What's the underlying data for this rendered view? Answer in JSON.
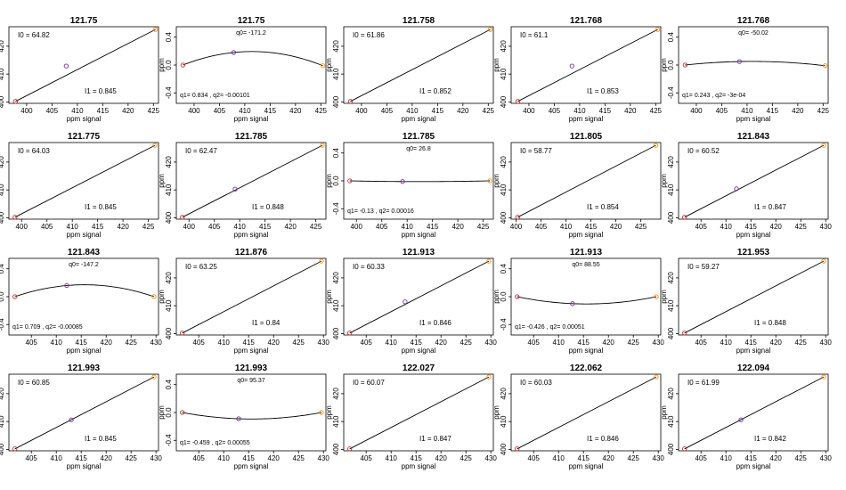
{
  "chart_data": [
    {
      "type": "line",
      "title": "121.75",
      "xlabel": "ppm signal",
      "ylabel": "ppm",
      "xlim": [
        396.5,
        426
      ],
      "ylim": [
        399.5,
        427
      ],
      "xticks": [
        "400",
        "405",
        "410",
        "415",
        "420",
        "425"
      ],
      "yticks": [
        "400",
        "410",
        "420"
      ],
      "points": [
        [
          397.8,
          400.2
        ],
        [
          407.8,
          412.9
        ],
        [
          425.4,
          426.0
        ]
      ],
      "fit": "linear",
      "annotations": [
        "I0 = 64.82",
        "I1 = 0.845"
      ]
    },
    {
      "type": "line",
      "title": "121.75",
      "xlabel": "ppm signal",
      "ylabel": "",
      "xlim": [
        396.5,
        426
      ],
      "ylim": [
        -0.55,
        0.55
      ],
      "xticks": [
        "400",
        "405",
        "410",
        "415",
        "420",
        "425"
      ],
      "yticks": [
        "-0.4",
        "0.0",
        "0.4"
      ],
      "points": [
        [
          397.8,
          0.0
        ],
        [
          407.8,
          0.18
        ],
        [
          425.4,
          -0.01
        ]
      ],
      "fit": "quadratic",
      "annotations": [
        "q0= -171.2",
        "q1= 0.834 , q2= -0.00101"
      ]
    },
    {
      "type": "line",
      "title": "121.758",
      "xlabel": "ppm signal",
      "ylabel": "",
      "xlim": [
        396.5,
        426
      ],
      "ylim": [
        399.5,
        427
      ],
      "xticks": [
        "400",
        "405",
        "410",
        "415",
        "420",
        "425"
      ],
      "yticks": [
        "400",
        "410",
        "420"
      ],
      "points": [
        [
          397.8,
          400.2
        ],
        [
          425.4,
          426.0
        ]
      ],
      "fit": "linear",
      "annotations": [
        "I0 = 61.86",
        "I1 = 0.852"
      ]
    },
    {
      "type": "line",
      "title": "121.768",
      "xlabel": "ppm signal",
      "ylabel": "",
      "xlim": [
        396.5,
        426
      ],
      "ylim": [
        399.5,
        427
      ],
      "xticks": [
        "400",
        "405",
        "410",
        "415",
        "420",
        "425"
      ],
      "yticks": [
        "400",
        "410",
        "420"
      ],
      "points": [
        [
          397.8,
          400.2
        ],
        [
          408.5,
          412.9
        ],
        [
          425.4,
          426.0
        ]
      ],
      "fit": "linear",
      "annotations": [
        "I0 = 61.1",
        "I1 = 0.853"
      ]
    },
    {
      "type": "line",
      "title": "121.768",
      "xlabel": "ppm signal",
      "ylabel": "",
      "xlim": [
        396.5,
        426
      ],
      "ylim": [
        -0.55,
        0.55
      ],
      "xticks": [
        "400",
        "405",
        "410",
        "415",
        "420",
        "425"
      ],
      "yticks": [
        "-0.4",
        "0.0",
        "0.4"
      ],
      "points": [
        [
          397.8,
          0.0
        ],
        [
          408.5,
          0.05
        ],
        [
          425.4,
          -0.01
        ]
      ],
      "fit": "quadratic",
      "annotations": [
        "q0= -50.02",
        "q1= 0.243 , q2= -3e-04"
      ]
    },
    {
      "type": "line",
      "title": "121.775",
      "xlabel": "ppm signal",
      "ylabel": "",
      "xlim": [
        397.5,
        427
      ],
      "ylim": [
        399.5,
        427
      ],
      "xticks": [
        "400",
        "405",
        "410",
        "415",
        "420",
        "425"
      ],
      "yticks": [
        "400",
        "410",
        "420"
      ],
      "points": [
        [
          398.7,
          400.2
        ],
        [
          426.3,
          426.0
        ]
      ],
      "fit": "linear",
      "annotations": [
        "I0 = 64.03",
        "I1 = 0.845"
      ]
    },
    {
      "type": "line",
      "title": "121.785",
      "xlabel": "ppm signal",
      "ylabel": "",
      "xlim": [
        397.5,
        427
      ],
      "ylim": [
        399.5,
        427
      ],
      "xticks": [
        "400",
        "405",
        "410",
        "415",
        "420",
        "425"
      ],
      "yticks": [
        "400",
        "410",
        "420"
      ],
      "points": [
        [
          398.7,
          400.2
        ],
        [
          409.1,
          410.3
        ],
        [
          426.3,
          426.0
        ]
      ],
      "fit": "linear",
      "annotations": [
        "I0 = 62.47",
        "I1 = 0.848"
      ]
    },
    {
      "type": "line",
      "title": "121.785",
      "xlabel": "ppm signal",
      "ylabel": "",
      "xlim": [
        397.5,
        427
      ],
      "ylim": [
        -0.55,
        0.55
      ],
      "xticks": [
        "400",
        "405",
        "410",
        "415",
        "420",
        "425"
      ],
      "yticks": [
        "-0.4",
        "0.0",
        "0.4"
      ],
      "points": [
        [
          398.7,
          0.0
        ],
        [
          409.1,
          -0.01
        ],
        [
          426.3,
          0.0
        ]
      ],
      "fit": "quadratic",
      "annotations": [
        "q0= 26.8",
        "q1= -0.13 , q2= 0.00016"
      ]
    },
    {
      "type": "line",
      "title": "121.805",
      "xlabel": "ppm signal",
      "ylabel": "",
      "xlim": [
        399,
        429
      ],
      "ylim": [
        399.5,
        427
      ],
      "xticks": [
        "400",
        "405",
        "410",
        "415",
        "420",
        "425"
      ],
      "yticks": [
        "400",
        "410",
        "420"
      ],
      "points": [
        [
          400.3,
          400.2
        ],
        [
          428.0,
          426.0
        ]
      ],
      "fit": "linear",
      "annotations": [
        "I0 = 58.77",
        "I1 = 0.854"
      ]
    },
    {
      "type": "line",
      "title": "121.843",
      "xlabel": "ppm signal",
      "ylabel": "",
      "xlim": [
        400.5,
        430.5
      ],
      "ylim": [
        399.5,
        427
      ],
      "xticks": [
        "405",
        "410",
        "415",
        "420",
        "425",
        "430"
      ],
      "yticks": [
        "400",
        "410",
        "420"
      ],
      "points": [
        [
          401.7,
          400.2
        ],
        [
          412.1,
          410.4
        ],
        [
          429.6,
          426.0
        ]
      ],
      "fit": "linear",
      "annotations": [
        "I0 = 60.52",
        "I1 = 0.847"
      ]
    },
    {
      "type": "line",
      "title": "121.843",
      "xlabel": "ppm signal",
      "ylabel": "",
      "xlim": [
        400.5,
        430.5
      ],
      "ylim": [
        -0.55,
        0.55
      ],
      "xticks": [
        "405",
        "410",
        "415",
        "420",
        "425",
        "430"
      ],
      "yticks": [
        "-0.4",
        "0.0",
        "0.4"
      ],
      "points": [
        [
          401.7,
          0.0
        ],
        [
          412.1,
          0.16
        ],
        [
          429.6,
          0.0
        ]
      ],
      "fit": "quadratic",
      "annotations": [
        "q0= -147.2",
        "q1= 0.709 , q2= -0.00085"
      ]
    },
    {
      "type": "line",
      "title": "121.876",
      "xlabel": "ppm signal",
      "ylabel": "",
      "xlim": [
        400.5,
        430.5
      ],
      "ylim": [
        399.5,
        427
      ],
      "xticks": [
        "405",
        "410",
        "415",
        "420",
        "425",
        "430"
      ],
      "yticks": [
        "400",
        "410",
        "420"
      ],
      "points": [
        [
          401.7,
          400.2
        ],
        [
          429.6,
          426.0
        ]
      ],
      "fit": "linear",
      "annotations": [
        "I0 = 63.25",
        "I1 = 0.84"
      ]
    },
    {
      "type": "line",
      "title": "121.913",
      "xlabel": "ppm signal",
      "ylabel": "",
      "xlim": [
        400.5,
        430.5
      ],
      "ylim": [
        399.5,
        427
      ],
      "xticks": [
        "405",
        "410",
        "415",
        "420",
        "425",
        "430"
      ],
      "yticks": [
        "400",
        "410",
        "420"
      ],
      "points": [
        [
          401.7,
          400.2
        ],
        [
          412.8,
          411.4
        ],
        [
          429.6,
          426.0
        ]
      ],
      "fit": "linear",
      "annotations": [
        "I0 = 60.33",
        "I1 = 0.846"
      ]
    },
    {
      "type": "line",
      "title": "121.913",
      "xlabel": "ppm signal",
      "ylabel": "",
      "xlim": [
        400.5,
        430.5
      ],
      "ylim": [
        -0.55,
        0.55
      ],
      "xticks": [
        "405",
        "410",
        "415",
        "420",
        "425",
        "430"
      ],
      "yticks": [
        "-0.4",
        "0.0",
        "0.4"
      ],
      "points": [
        [
          401.7,
          0.0
        ],
        [
          412.8,
          -0.1
        ],
        [
          429.6,
          0.0
        ]
      ],
      "fit": "quadratic",
      "annotations": [
        "q0= 88.55",
        "q1= -0.426 , q2= 0.00051"
      ]
    },
    {
      "type": "line",
      "title": "121.953",
      "xlabel": "ppm signal",
      "ylabel": "",
      "xlim": [
        400.5,
        430.5
      ],
      "ylim": [
        399.5,
        427
      ],
      "xticks": [
        "405",
        "410",
        "415",
        "420",
        "425",
        "430"
      ],
      "yticks": [
        "400",
        "410",
        "420"
      ],
      "points": [
        [
          401.7,
          400.2
        ],
        [
          429.6,
          426.0
        ]
      ],
      "fit": "linear",
      "annotations": [
        "I0 = 59.27",
        "I1 = 0.848"
      ]
    },
    {
      "type": "line",
      "title": "121.993",
      "xlabel": "ppm signal",
      "ylabel": "",
      "xlim": [
        400.5,
        430.5
      ],
      "ylim": [
        399.5,
        427
      ],
      "xticks": [
        "405",
        "410",
        "415",
        "420",
        "425",
        "430"
      ],
      "yticks": [
        "400",
        "410",
        "420"
      ],
      "points": [
        [
          401.7,
          400.2
        ],
        [
          413.0,
          410.6
        ],
        [
          429.6,
          426.0
        ]
      ],
      "fit": "linear",
      "annotations": [
        "I0 = 60.85",
        "I1 = 0.845"
      ]
    },
    {
      "type": "line",
      "title": "121.993",
      "xlabel": "ppm signal",
      "ylabel": "",
      "xlim": [
        400.5,
        430.5
      ],
      "ylim": [
        -0.55,
        0.55
      ],
      "xticks": [
        "405",
        "410",
        "415",
        "420",
        "425",
        "430"
      ],
      "yticks": [
        "-0.4",
        "0.0",
        "0.4"
      ],
      "points": [
        [
          401.7,
          0.0
        ],
        [
          413.0,
          -0.09
        ],
        [
          429.6,
          0.0
        ]
      ],
      "fit": "quadratic",
      "annotations": [
        "q0= 95.37",
        "q1= -0.459 , q2= 0.00055"
      ]
    },
    {
      "type": "line",
      "title": "122.027",
      "xlabel": "ppm signal",
      "ylabel": "",
      "xlim": [
        400.5,
        430.5
      ],
      "ylim": [
        399.5,
        427
      ],
      "xticks": [
        "405",
        "410",
        "415",
        "420",
        "425",
        "430"
      ],
      "yticks": [
        "400",
        "410",
        "420"
      ],
      "points": [
        [
          401.7,
          400.2
        ],
        [
          429.6,
          426.0
        ]
      ],
      "fit": "linear",
      "annotations": [
        "I0 = 60.07",
        "I1 = 0.847"
      ]
    },
    {
      "type": "line",
      "title": "122.062",
      "xlabel": "ppm signal",
      "ylabel": "",
      "xlim": [
        400.5,
        430.5
      ],
      "ylim": [
        399.5,
        427
      ],
      "xticks": [
        "405",
        "410",
        "415",
        "420",
        "425",
        "430"
      ],
      "yticks": [
        "400",
        "410",
        "420"
      ],
      "points": [
        [
          401.7,
          400.2
        ],
        [
          429.6,
          426.0
        ]
      ],
      "fit": "linear",
      "annotations": [
        "I0 = 60.03",
        "I1 = 0.846"
      ]
    },
    {
      "type": "line",
      "title": "122.094",
      "xlabel": "ppm signal",
      "ylabel": "",
      "xlim": [
        400.5,
        430.5
      ],
      "ylim": [
        399.5,
        427
      ],
      "xticks": [
        "405",
        "410",
        "415",
        "420",
        "425",
        "430"
      ],
      "yticks": [
        "400",
        "410",
        "420"
      ],
      "points": [
        [
          401.7,
          400.2
        ],
        [
          413.0,
          410.6
        ],
        [
          429.6,
          426.0
        ]
      ],
      "fit": "linear",
      "annotations": [
        "I0 = 61.99",
        "I1 = 0.842"
      ]
    }
  ],
  "colors": {
    "axis": "#000000",
    "line": "#000000",
    "point_start": "#d62728",
    "point_mid": "#7030a0",
    "point_end": "#ff8c00"
  },
  "ylabel_default": "ppm"
}
